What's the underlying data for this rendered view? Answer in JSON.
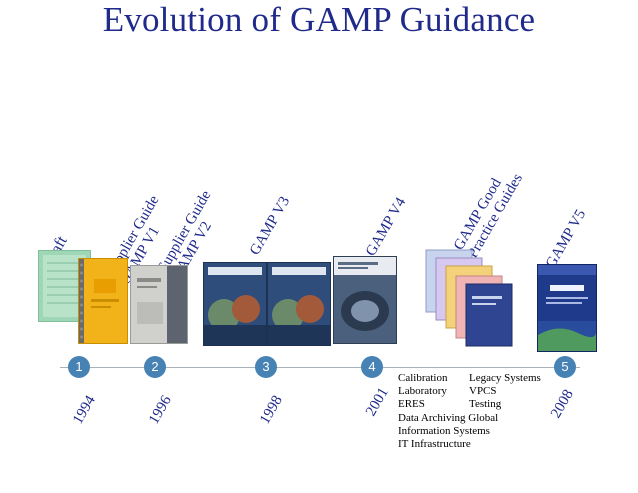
{
  "title": "Evolution of GAMP Guidance",
  "labels": {
    "draft": "Draft",
    "v1_line1": "Supplier Guide",
    "v1_line2": "GAMP V1",
    "v2_line1": "Supplier Guide",
    "v2_line2": "GAMP V2",
    "v3": "GAMP V3",
    "v4": "GAMP V4",
    "gpg_line1": "GAMP Good",
    "gpg_line2": "Practice Guides",
    "v5": "GAMP V5"
  },
  "milestones": [
    {
      "number": "1",
      "year": "1994"
    },
    {
      "number": "2",
      "year": "1996"
    },
    {
      "number": "3",
      "year": "1998"
    },
    {
      "number": "4",
      "year": "2001"
    },
    {
      "number": "5",
      "year": "2008"
    }
  ],
  "categories": {
    "row1_a": "Calibration",
    "row1_b": "Legacy Systems",
    "row2_a": "Laboratory",
    "row2_b": "VPCS",
    "row3_a": "ERES",
    "row3_b": "Testing",
    "row4": "Data Archiving Global",
    "row5": "Information Systems",
    "row6": "IT Infrastructure"
  },
  "colors": {
    "title": "#1f2a8a",
    "timeline": "#a8b0b8",
    "circle": "#4682b4",
    "text": "#000000"
  }
}
